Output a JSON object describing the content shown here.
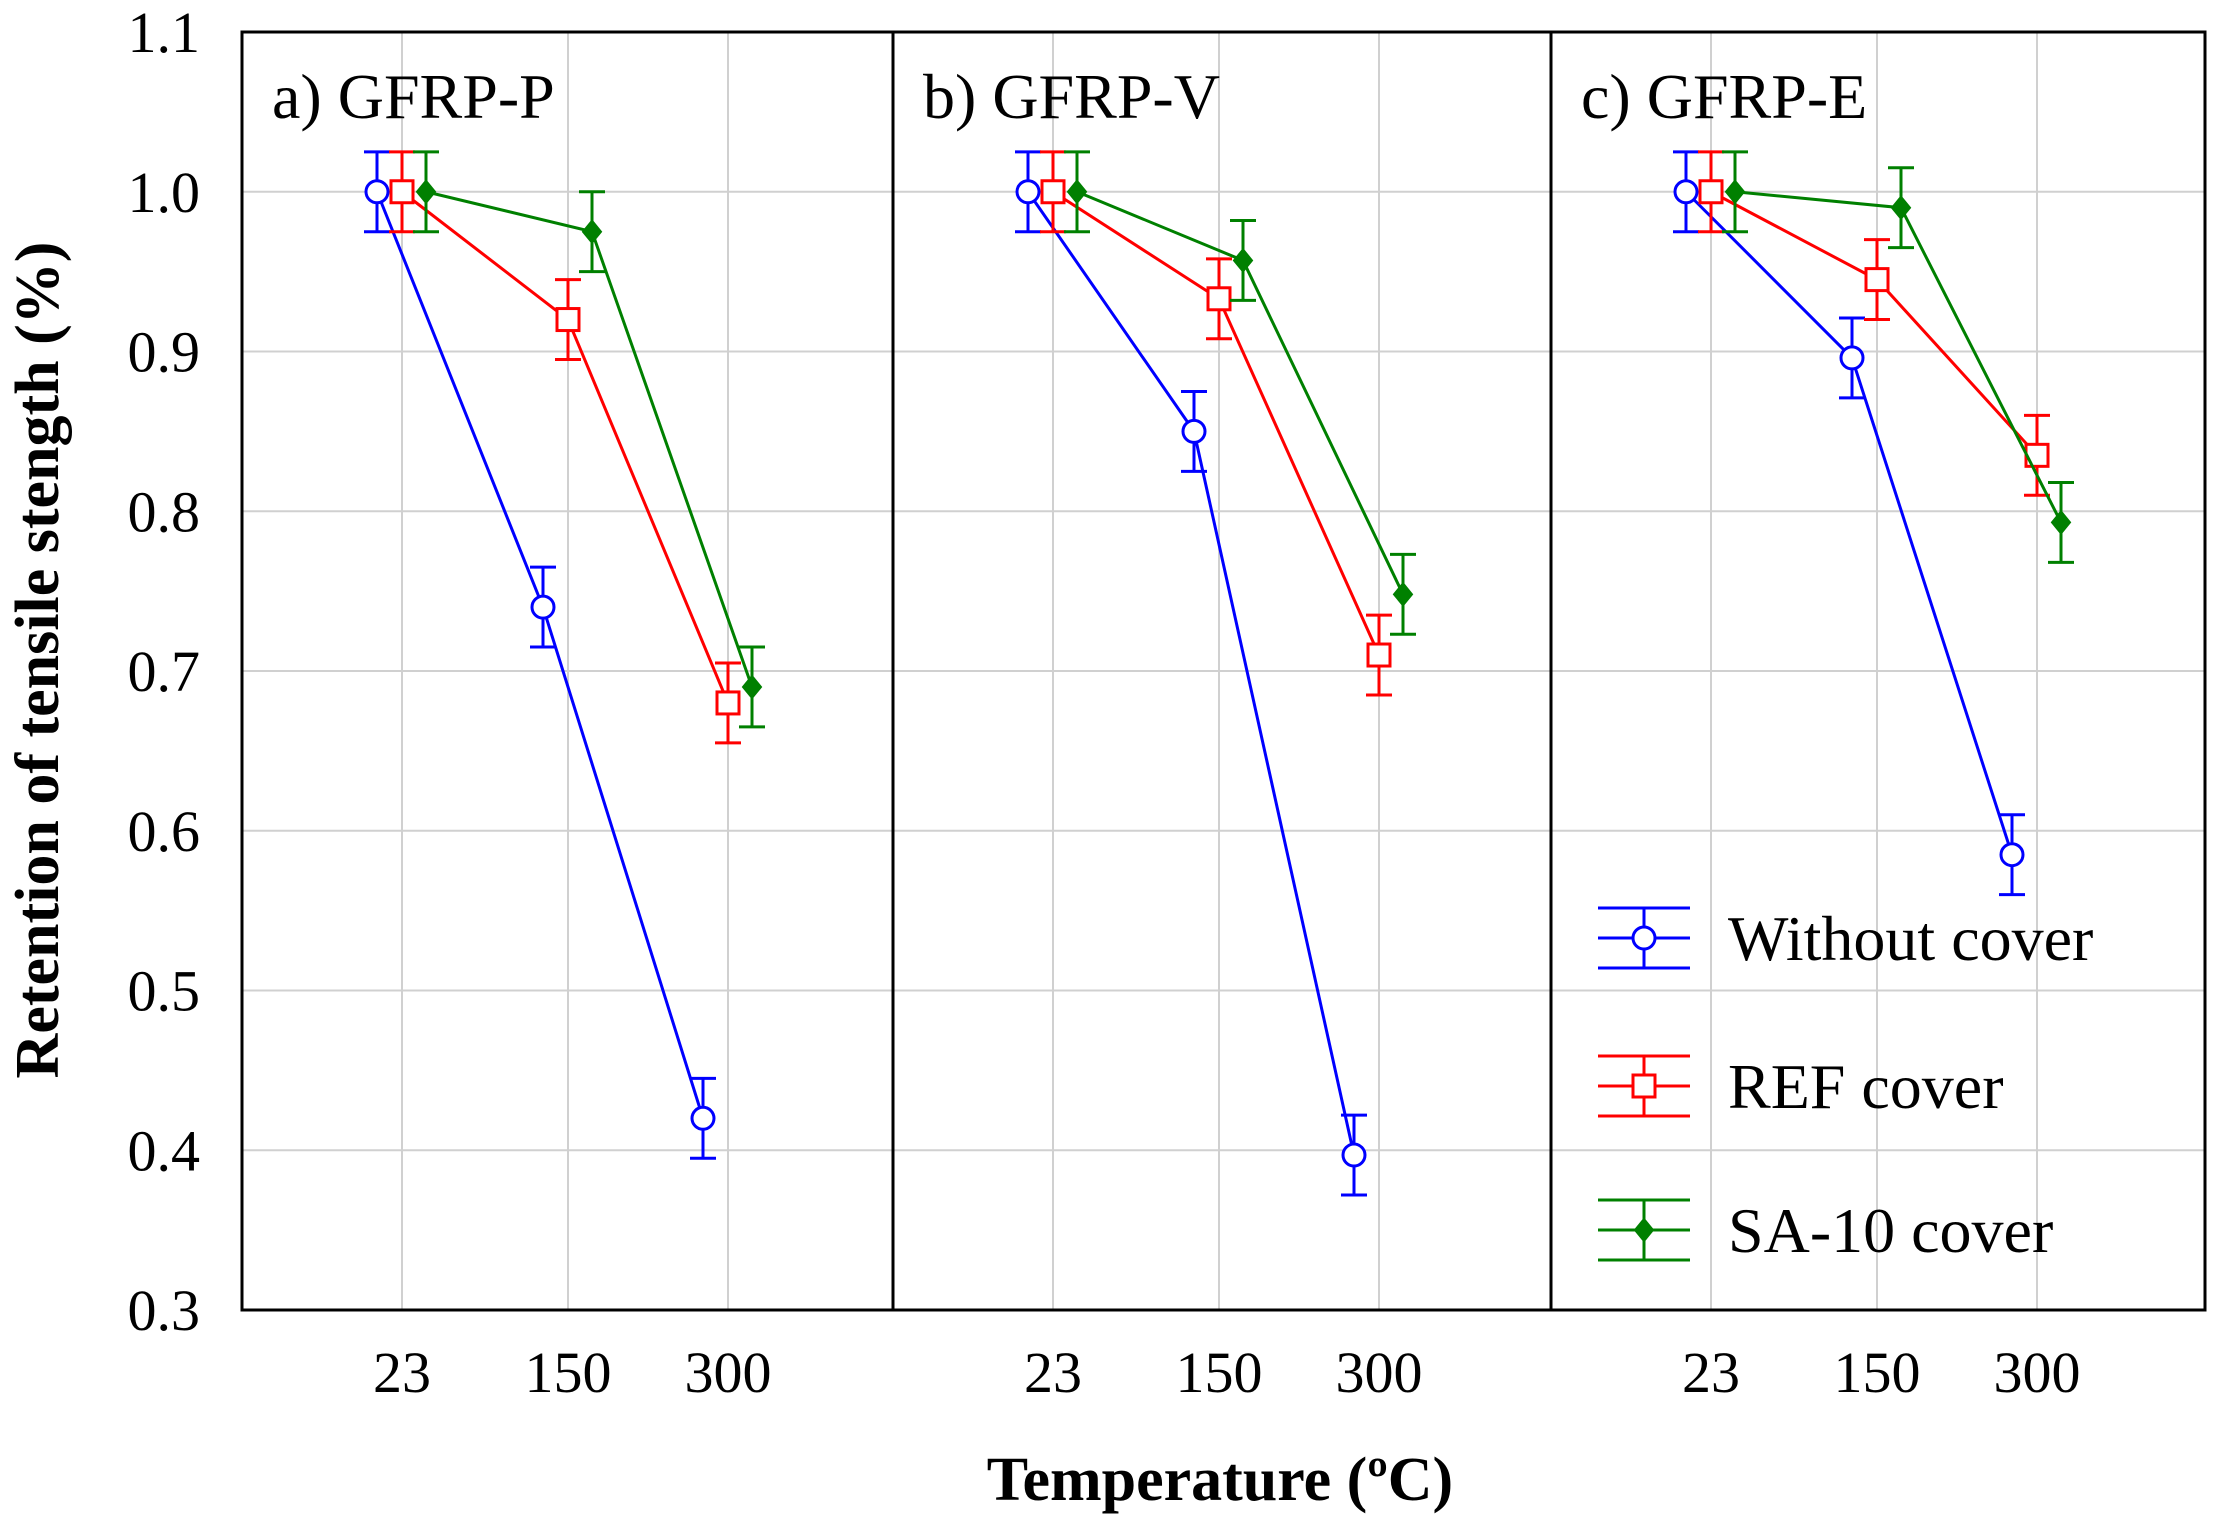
{
  "chart_data": {
    "type": "line",
    "xlabel": "Temperature (ºC)",
    "ylabel": "Retention of tensile stength (%)",
    "ylim": [
      0.3,
      1.1
    ],
    "yticks": [
      "1.1",
      "1.0",
      "0.9",
      "0.8",
      "0.7",
      "0.6",
      "0.5",
      "0.4",
      "0.3"
    ],
    "yticks_values": [
      1.1,
      1.0,
      0.9,
      0.8,
      0.7,
      0.6,
      0.5,
      0.4,
      0.3
    ],
    "categories": [
      "23",
      "150",
      "300"
    ],
    "grid": true,
    "legend": {
      "placement": "bottom-right of panel c",
      "entries": [
        "Without cover",
        "REF cover",
        "SA-10 cover"
      ]
    },
    "series_styles": [
      {
        "name": "Without cover",
        "color": "#0000ff",
        "marker": "circle"
      },
      {
        "name": "REF cover",
        "color": "#ff0000",
        "marker": "square"
      },
      {
        "name": "SA-10 cover",
        "color": "#008000",
        "marker": "diamond"
      }
    ],
    "panels": [
      {
        "title": "a) GFRP-P",
        "series": [
          {
            "name": "Without cover",
            "values": [
              1.0,
              0.74,
              0.42
            ],
            "error": [
              0.025,
              0.025,
              0.025
            ]
          },
          {
            "name": "REF cover",
            "values": [
              1.0,
              0.92,
              0.68
            ],
            "error": [
              0.025,
              0.025,
              0.025
            ]
          },
          {
            "name": "SA-10 cover",
            "values": [
              1.0,
              0.975,
              0.69
            ],
            "error": [
              0.025,
              0.025,
              0.025
            ]
          }
        ]
      },
      {
        "title": "b) GFRP-V",
        "series": [
          {
            "name": "Without cover",
            "values": [
              1.0,
              0.85,
              0.397
            ],
            "error": [
              0.025,
              0.025,
              0.025
            ]
          },
          {
            "name": "REF cover",
            "values": [
              1.0,
              0.933,
              0.71
            ],
            "error": [
              0.025,
              0.025,
              0.025
            ]
          },
          {
            "name": "SA-10 cover",
            "values": [
              1.0,
              0.957,
              0.748
            ],
            "error": [
              0.025,
              0.025,
              0.025
            ]
          }
        ]
      },
      {
        "title": "c) GFRP-E",
        "series": [
          {
            "name": "Without cover",
            "values": [
              1.0,
              0.896,
              0.585
            ],
            "error": [
              0.025,
              0.025,
              0.025
            ]
          },
          {
            "name": "REF cover",
            "values": [
              1.0,
              0.945,
              0.835
            ],
            "error": [
              0.025,
              0.025,
              0.025
            ]
          },
          {
            "name": "SA-10 cover",
            "values": [
              1.0,
              0.99,
              0.793
            ],
            "error": [
              0.025,
              0.025,
              0.025
            ]
          }
        ]
      }
    ]
  }
}
